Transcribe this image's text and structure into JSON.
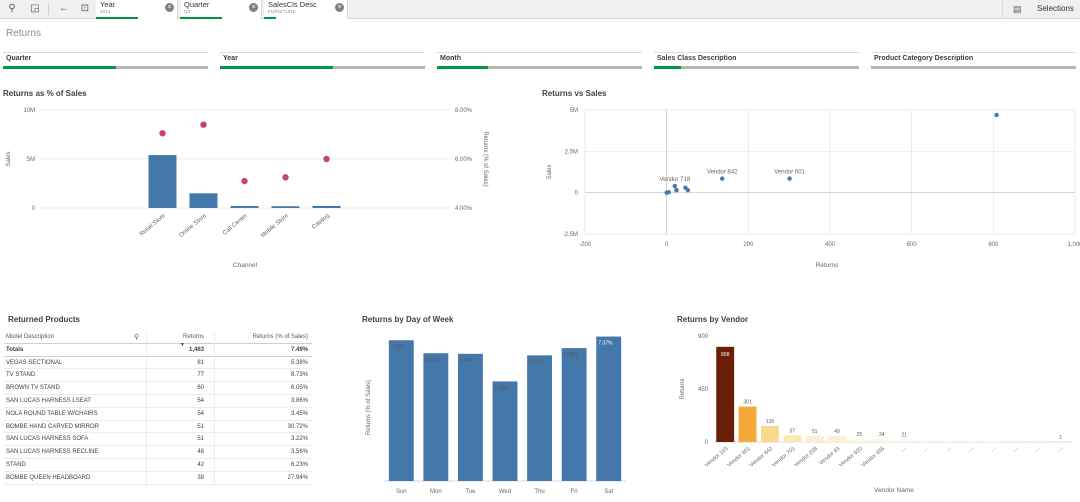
{
  "toolbar": {
    "chips": [
      {
        "name": "Year",
        "value": "2014"
      },
      {
        "name": "Quarter",
        "value": "Q3"
      },
      {
        "name": "SalesCls Desc",
        "value": "FURNITURE"
      }
    ],
    "selections_label": "Selections"
  },
  "sheet": {
    "title": "Returns"
  },
  "filters": [
    {
      "label": "Quarter",
      "fill": 0.55
    },
    {
      "label": "Year",
      "fill": 0.55
    },
    {
      "label": "Month",
      "fill": 0.25
    },
    {
      "label": "Sales Class Description",
      "fill": 0.13
    },
    {
      "label": "Product Category Description",
      "fill": 0.0
    }
  ],
  "returns_pct_sales": {
    "title": "Returns as % of Sales",
    "chart_data": {
      "type": "bar",
      "categories": [
        "Retail Store",
        "Online Store",
        "Call Center",
        "Mobile Store",
        "Catalog"
      ],
      "series": [
        {
          "name": "Sales",
          "values": [
            5400000,
            1500000,
            200000,
            180000,
            210000
          ]
        },
        {
          "name": "Returns (% of Sales)",
          "values": [
            7.05,
            7.4,
            5.1,
            5.25,
            6.0
          ]
        }
      ],
      "xlabel": "Channel",
      "ylabel": "Sales",
      "y2label": "Returns (% of Sales)",
      "yticks": [
        "10M",
        "5M",
        "0"
      ],
      "y2ticks": [
        "8.00%",
        "6.00%",
        "4.00%"
      ],
      "ylim": [
        0,
        10000000
      ],
      "y2lim": [
        4,
        8
      ]
    }
  },
  "returns_vs_sales": {
    "title": "Returns vs Sales",
    "chart_data": {
      "type": "scatter",
      "xlabel": "Returns",
      "ylabel": "Sales",
      "xticks": [
        "-200",
        "0",
        "200",
        "400",
        "600",
        "800",
        "1,000"
      ],
      "yticks": [
        "5M",
        "2.5M",
        "0",
        "-2.5M"
      ],
      "xlim": [
        -200,
        1000
      ],
      "ylim": [
        -2500000,
        5000000
      ],
      "points": [
        {
          "x": 0,
          "y": 0,
          "label": ""
        },
        {
          "x": 5,
          "y": 30000,
          "label": ""
        },
        {
          "x": 20,
          "y": 400000,
          "label": "Vendor 718"
        },
        {
          "x": 24,
          "y": 150000,
          "label": ""
        },
        {
          "x": 46,
          "y": 300000,
          "label": ""
        },
        {
          "x": 52,
          "y": 150000,
          "label": ""
        },
        {
          "x": 136,
          "y": 850000,
          "label": "Vendor 842"
        },
        {
          "x": 301,
          "y": 850000,
          "label": "Vendor 601"
        },
        {
          "x": 808,
          "y": 4700000,
          "label": ""
        }
      ]
    }
  },
  "returned_products": {
    "title": "Returned Products",
    "headers": [
      "Model Description",
      "Returns",
      "Returns (% of Sales)"
    ],
    "totals": {
      "label": "Totals",
      "returns": "1,463",
      "pct": "7.49%"
    },
    "rows": [
      {
        "name": "VEGAS SECTIONAL",
        "returns": "81",
        "pct": "5.38%"
      },
      {
        "name": "TV STAND",
        "returns": "77",
        "pct": "8.73%"
      },
      {
        "name": "BROWN TV STAND",
        "returns": "60",
        "pct": "6.05%"
      },
      {
        "name": "SAN LUCAS HARNESS LSEAT",
        "returns": "54",
        "pct": "3.86%"
      },
      {
        "name": "NOLA ROUND TABLE W/CHAIRS",
        "returns": "54",
        "pct": "3.45%"
      },
      {
        "name": "BOMBE HAND CARVED MIRROR",
        "returns": "51",
        "pct": "30.72%"
      },
      {
        "name": "SAN LUCAS HARNESS SOFA",
        "returns": "51",
        "pct": "3.22%"
      },
      {
        "name": "SAN LUCAS HARNESS RECLINE",
        "returns": "48",
        "pct": "3.56%"
      },
      {
        "name": "STAND",
        "returns": "42",
        "pct": "6.23%"
      },
      {
        "name": "BOMBE QUEEN HEADBOARD",
        "returns": "38",
        "pct": "27.94%"
      }
    ]
  },
  "returns_by_day": {
    "title": "Returns by Day of Week",
    "chart_data": {
      "type": "bar",
      "categories": [
        "Sun",
        "Mon",
        "Tue",
        "Wed",
        "Thu",
        "Fri",
        "Sat"
      ],
      "values": [
        7.18,
        6.52,
        6.49,
        5.08,
        6.41,
        6.78,
        7.37
      ],
      "labels": [
        "7.18%",
        "6.52%",
        "6.49%",
        "5.08%",
        "6.41%",
        "6.78%",
        "7.37%"
      ],
      "ylabel": "Returns (% of Sales)",
      "ylim": [
        0,
        7.5
      ],
      "color": "#4477aa"
    }
  },
  "returns_by_vendor": {
    "title": "Returns by Vendor",
    "chart_data": {
      "type": "bar",
      "categories": [
        "Vendor 103",
        "Vendor 601",
        "Vendor 842",
        "Vendor 701",
        "Vendor 208",
        "Vendor 83",
        "Vendor 620",
        "Vendor 655",
        "",
        "",
        "",
        "",
        "",
        "",
        "",
        ""
      ],
      "values": [
        808,
        301,
        136,
        57,
        51,
        49,
        25,
        24,
        21,
        10,
        8,
        6,
        4,
        3,
        2,
        1
      ],
      "labels": [
        "808",
        "301",
        "136",
        "57",
        "51",
        "49",
        "25",
        "24",
        "21",
        "",
        "",
        "",
        "",
        "",
        "",
        "1"
      ],
      "xlabel": "Vendor Name",
      "ylabel": "Returns",
      "yticks": [
        "900",
        "450",
        "0"
      ],
      "ylim": [
        0,
        900
      ],
      "colors": [
        "#6b1f06",
        "#f6a93b",
        "#fbd98a",
        "#fce7b3",
        "#fdefcf",
        "#fdefcf",
        "#fef5e3",
        "#fef5e3",
        "#fef7ea",
        "#fef8ee",
        "#fef8ee",
        "#fef8ee",
        "#fef8ee",
        "#fef8ee",
        "#fef8ee",
        "#fef8ee"
      ]
    }
  }
}
